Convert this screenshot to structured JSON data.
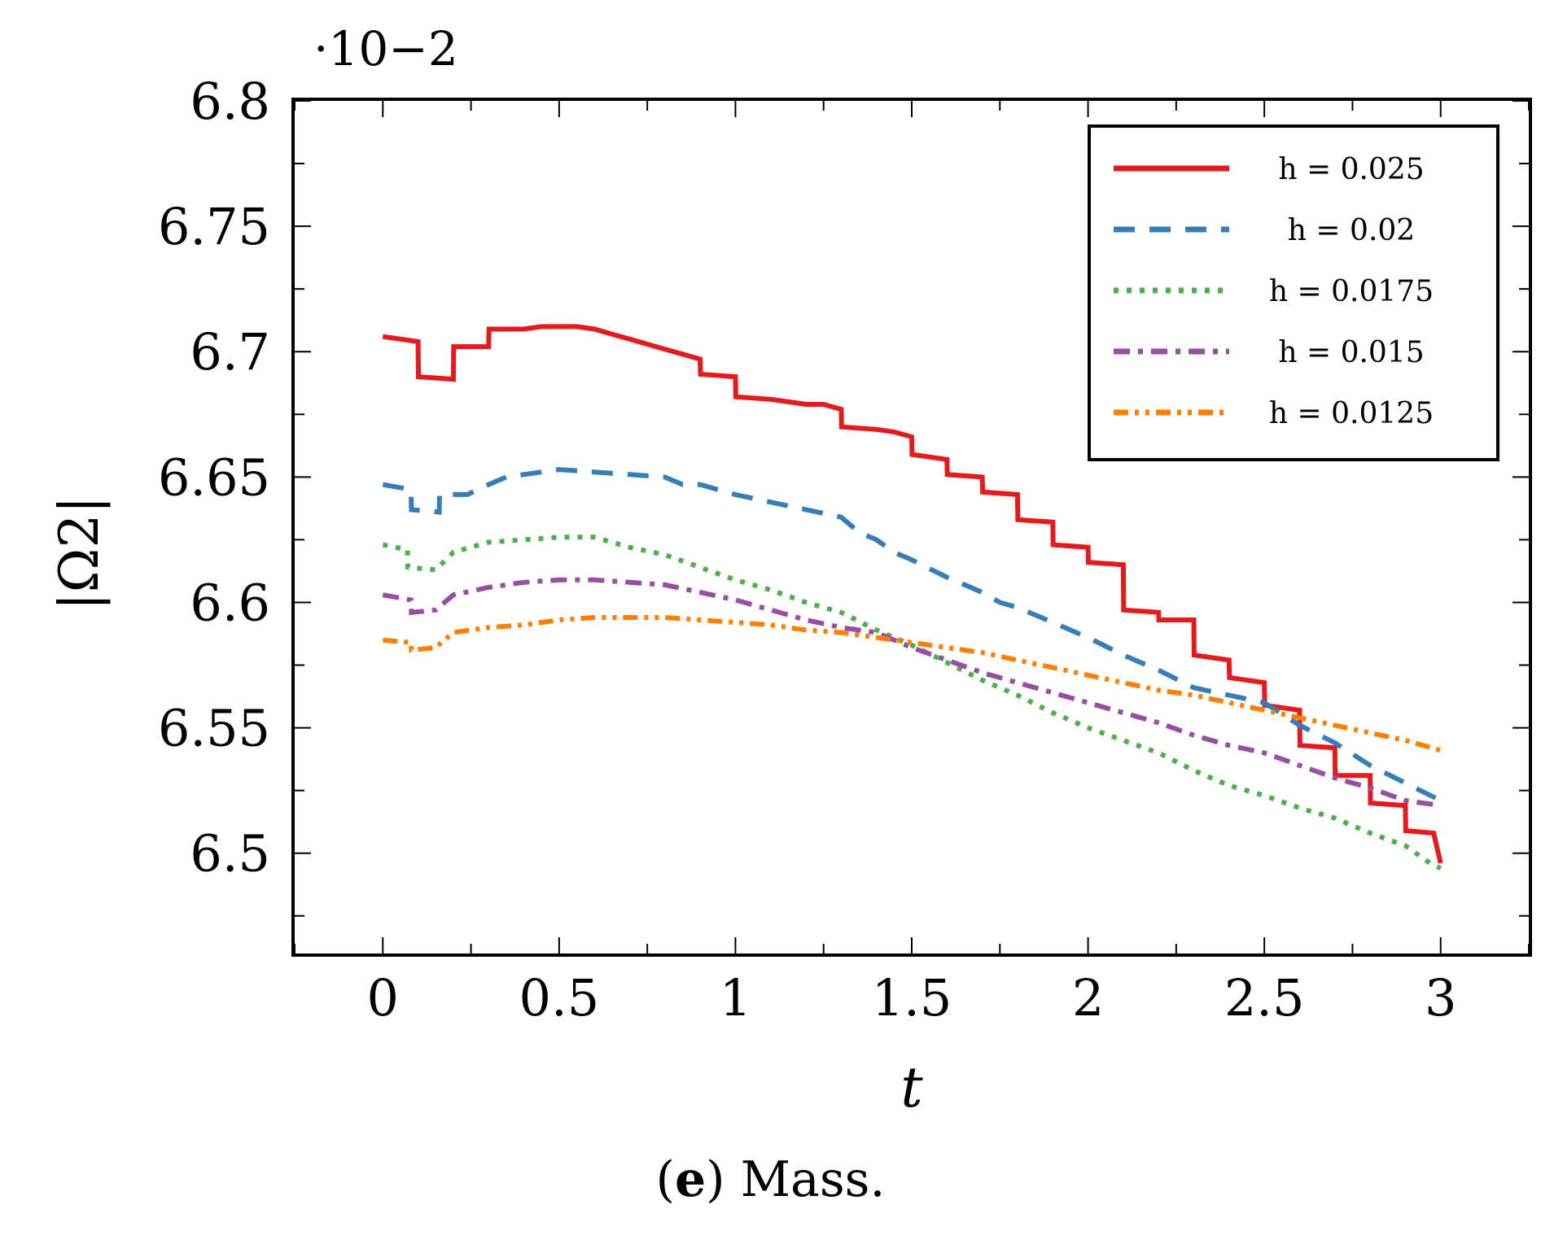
{
  "caption": {
    "label": "e",
    "text": " Mass."
  },
  "chart_data": {
    "type": "line",
    "title": "",
    "xlabel": "t",
    "ylabel": "|Ω2|",
    "y_scale_note": "·10−2",
    "xlim": [
      -0.25,
      3.25
    ],
    "ylim": [
      6.46,
      6.8
    ],
    "xticks": [
      0,
      0.5,
      1,
      1.5,
      2,
      2.5,
      3
    ],
    "xtick_labels": [
      "0",
      "0.5",
      "1",
      "1.5",
      "2",
      "2.5",
      "3"
    ],
    "yticks": [
      6.5,
      6.55,
      6.6,
      6.65,
      6.7,
      6.75,
      6.8
    ],
    "ytick_labels": [
      "6.5",
      "6.55",
      "6.6",
      "6.65",
      "6.7",
      "6.75",
      "6.8"
    ],
    "legend_position": "top-right",
    "series": [
      {
        "name": "h = 0.025",
        "color": "#e41a1c",
        "style": "solid",
        "x": [
          0,
          0.1,
          0.101,
          0.2,
          0.201,
          0.3,
          0.301,
          0.4,
          0.45,
          0.5,
          0.55,
          0.6,
          0.65,
          0.7,
          0.75,
          0.8,
          0.85,
          0.9,
          0.901,
          1.0,
          1.001,
          1.1,
          1.15,
          1.2,
          1.25,
          1.3,
          1.301,
          1.4,
          1.45,
          1.5,
          1.501,
          1.6,
          1.601,
          1.7,
          1.701,
          1.8,
          1.801,
          1.9,
          1.901,
          2.0,
          2.001,
          2.1,
          2.101,
          2.2,
          2.201,
          2.3,
          2.301,
          2.4,
          2.401,
          2.5,
          2.501,
          2.6,
          2.601,
          2.7,
          2.701,
          2.8,
          2.801,
          2.9,
          2.901,
          2.98,
          3.0
        ],
        "values": [
          6.706,
          6.704,
          6.69,
          6.689,
          6.702,
          6.702,
          6.709,
          6.709,
          6.71,
          6.71,
          6.71,
          6.709,
          6.707,
          6.705,
          6.703,
          6.701,
          6.699,
          6.697,
          6.691,
          6.69,
          6.682,
          6.681,
          6.68,
          6.679,
          6.679,
          6.677,
          6.67,
          6.669,
          6.668,
          6.666,
          6.659,
          6.657,
          6.651,
          6.65,
          6.644,
          6.643,
          6.633,
          6.632,
          6.623,
          6.622,
          6.616,
          6.615,
          6.597,
          6.596,
          6.593,
          6.593,
          6.579,
          6.577,
          6.57,
          6.568,
          6.559,
          6.557,
          6.543,
          6.542,
          6.531,
          6.531,
          6.52,
          6.519,
          6.509,
          6.508,
          6.496
        ]
      },
      {
        "name": "h = 0.02",
        "color": "#377eb8",
        "style": "dashed",
        "x": [
          0,
          0.08,
          0.081,
          0.16,
          0.161,
          0.24,
          0.3,
          0.35,
          0.4,
          0.5,
          0.6,
          0.7,
          0.8,
          0.85,
          0.9,
          0.95,
          1.0,
          1.1,
          1.2,
          1.3,
          1.35,
          1.4,
          1.45,
          1.5,
          1.6,
          1.7,
          1.75,
          1.8,
          1.9,
          2.0,
          2.1,
          2.2,
          2.3,
          2.4,
          2.5,
          2.6,
          2.7,
          2.8,
          2.9,
          3.0
        ],
        "values": [
          6.647,
          6.645,
          6.637,
          6.636,
          6.643,
          6.643,
          6.647,
          6.65,
          6.651,
          6.653,
          6.652,
          6.651,
          6.65,
          6.647,
          6.647,
          6.645,
          6.643,
          6.64,
          6.637,
          6.634,
          6.628,
          6.625,
          6.62,
          6.617,
          6.61,
          6.604,
          6.6,
          6.598,
          6.592,
          6.586,
          6.579,
          6.573,
          6.566,
          6.563,
          6.56,
          6.551,
          6.544,
          6.535,
          6.528,
          6.521
        ]
      },
      {
        "name": "h = 0.0175",
        "color": "#4daf4a",
        "style": "dotted",
        "x": [
          0,
          0.07,
          0.071,
          0.15,
          0.2,
          0.3,
          0.4,
          0.5,
          0.6,
          0.7,
          0.8,
          0.9,
          1.0,
          1.1,
          1.2,
          1.3,
          1.4,
          1.5,
          1.6,
          1.7,
          1.8,
          1.9,
          2.0,
          2.1,
          2.2,
          2.3,
          2.4,
          2.5,
          2.6,
          2.7,
          2.8,
          2.9,
          2.97,
          3.0
        ],
        "values": [
          6.623,
          6.621,
          6.614,
          6.613,
          6.62,
          6.624,
          6.625,
          6.626,
          6.626,
          6.622,
          6.619,
          6.614,
          6.609,
          6.605,
          6.6,
          6.596,
          6.589,
          6.583,
          6.576,
          6.569,
          6.563,
          6.556,
          6.55,
          6.545,
          6.54,
          6.533,
          6.527,
          6.523,
          6.518,
          6.514,
          6.508,
          6.503,
          6.496,
          6.494
        ]
      },
      {
        "name": "h = 0.015",
        "color": "#984ea3",
        "style": "dashdot",
        "x": [
          0,
          0.08,
          0.081,
          0.15,
          0.2,
          0.3,
          0.4,
          0.5,
          0.6,
          0.7,
          0.8,
          0.9,
          1.0,
          1.1,
          1.2,
          1.3,
          1.4,
          1.5,
          1.6,
          1.7,
          1.8,
          1.9,
          2.0,
          2.1,
          2.2,
          2.3,
          2.4,
          2.5,
          2.6,
          2.7,
          2.8,
          2.9,
          3.0
        ],
        "values": [
          6.603,
          6.601,
          6.596,
          6.597,
          6.603,
          6.606,
          6.608,
          6.609,
          6.609,
          6.608,
          6.607,
          6.604,
          6.601,
          6.597,
          6.593,
          6.59,
          6.588,
          6.582,
          6.577,
          6.572,
          6.568,
          6.564,
          6.56,
          6.556,
          6.552,
          6.547,
          6.543,
          6.54,
          6.535,
          6.53,
          6.526,
          6.521,
          6.519
        ]
      },
      {
        "name": "h = 0.0125",
        "color": "#ff7f00",
        "style": "dashdotdot",
        "x": [
          0,
          0.08,
          0.081,
          0.15,
          0.2,
          0.3,
          0.4,
          0.5,
          0.6,
          0.7,
          0.8,
          0.9,
          1.0,
          1.1,
          1.2,
          1.3,
          1.4,
          1.5,
          1.6,
          1.7,
          1.8,
          1.9,
          2.0,
          2.1,
          2.2,
          2.3,
          2.4,
          2.5,
          2.6,
          2.7,
          2.8,
          2.9,
          3.0
        ],
        "values": [
          6.585,
          6.584,
          6.581,
          6.582,
          6.588,
          6.59,
          6.591,
          6.593,
          6.594,
          6.594,
          6.594,
          6.593,
          6.592,
          6.591,
          6.589,
          6.588,
          6.586,
          6.584,
          6.582,
          6.58,
          6.577,
          6.574,
          6.571,
          6.568,
          6.565,
          6.563,
          6.56,
          6.557,
          6.554,
          6.551,
          6.548,
          6.545,
          6.541
        ]
      }
    ]
  }
}
